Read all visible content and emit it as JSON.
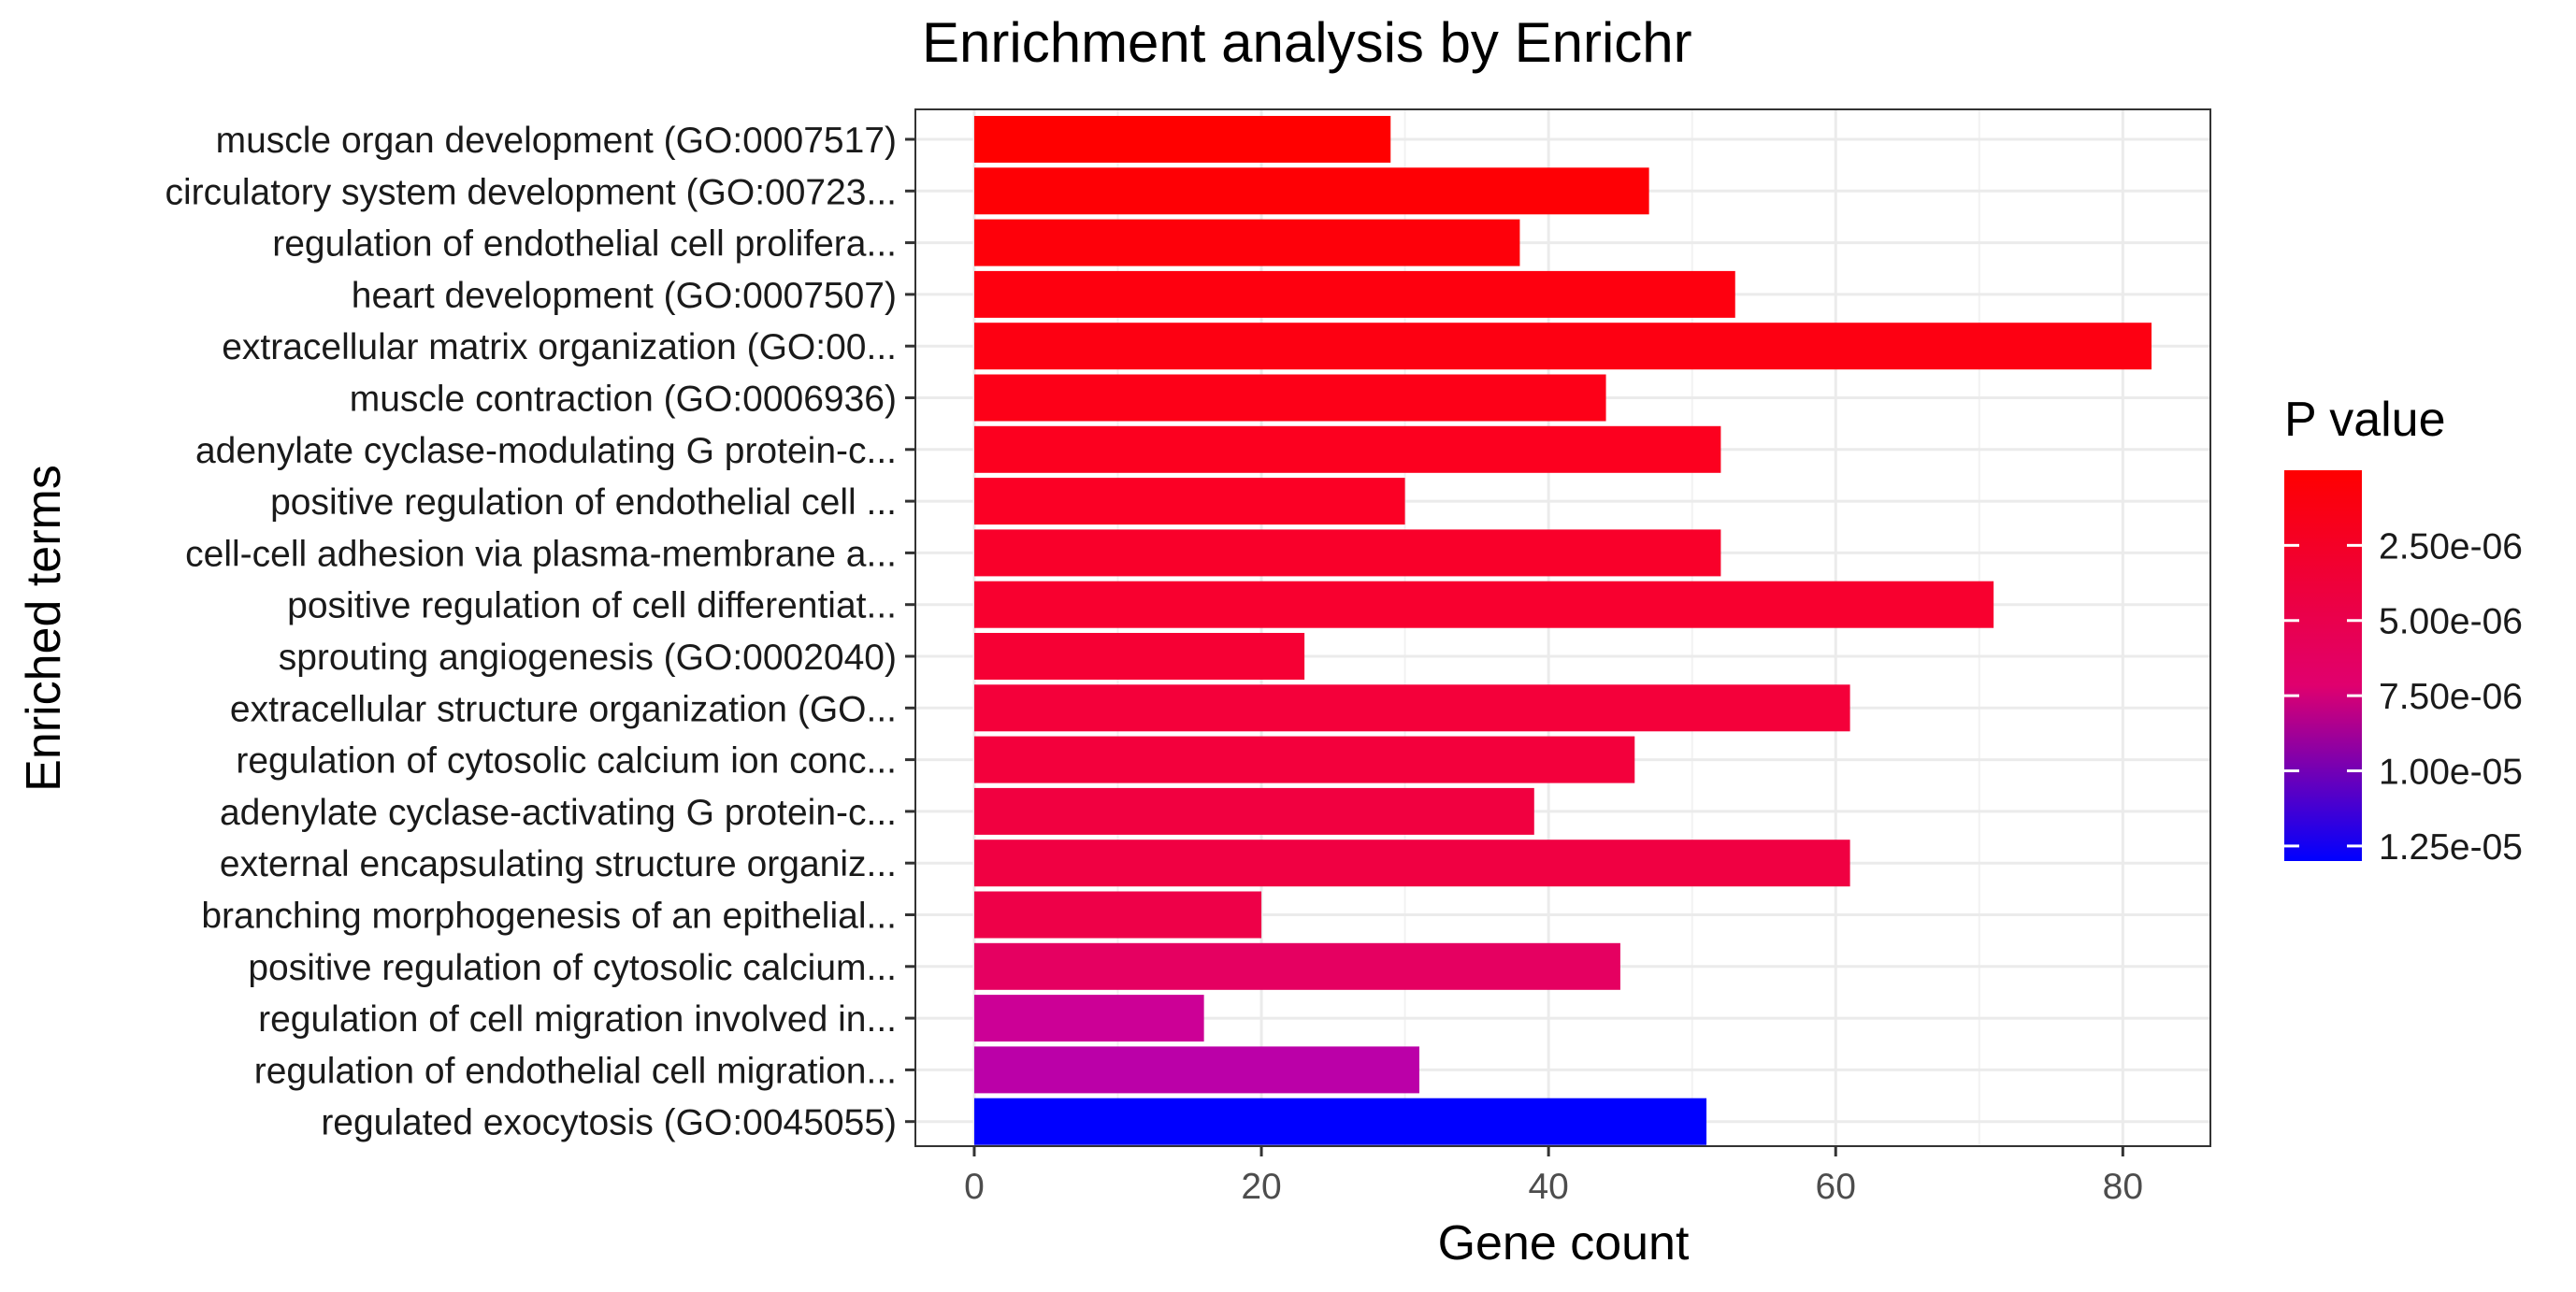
{
  "chart_data": {
    "type": "bar",
    "orientation": "horizontal",
    "title": "Enrichment analysis by Enrichr",
    "xlabel": "Gene count",
    "ylabel": "Enriched terms",
    "xlim": [
      -4.1,
      86.1
    ],
    "x_ticks": [
      0,
      20,
      40,
      60,
      80
    ],
    "grid": true,
    "legend_position": "right",
    "categories": [
      "muscle organ development (GO:0007517)",
      "circulatory system development (GO:00723...",
      "regulation of endothelial cell prolifera...",
      "heart development (GO:0007507)",
      "extracellular matrix organization (GO:00...",
      "muscle contraction (GO:0006936)",
      "adenylate cyclase-modulating G protein-c...",
      "positive regulation of endothelial cell ...",
      "cell-cell adhesion via plasma-membrane a...",
      "positive regulation of cell differentiat...",
      "sprouting angiogenesis (GO:0002040)",
      "extracellular structure organization (GO...",
      "regulation of cytosolic calcium ion conc...",
      "adenylate cyclase-activating G protein-c...",
      "external encapsulating structure organiz...",
      "branching morphogenesis of an epithelial...",
      "positive regulation of cytosolic calcium...",
      "regulation of cell migration involved in...",
      "regulation of endothelial cell migration...",
      "regulated exocytosis (GO:0045055)"
    ],
    "series": [
      {
        "values": [
          29,
          47,
          38,
          53,
          82,
          44,
          52,
          30,
          52,
          71,
          23,
          61,
          46,
          39,
          61,
          20,
          45,
          16,
          31,
          51
        ],
        "p_values": [
          1e-09,
          5e-08,
          1e-07,
          2e-07,
          3e-07,
          5e-07,
          7e-07,
          9e-07,
          1e-06,
          1.2e-06,
          1.5e-06,
          1.8e-06,
          2e-06,
          2.2e-06,
          2.3e-06,
          2.6e-06,
          3.6e-06,
          6e-06,
          6.8e-06,
          1.3e-05
        ],
        "colors": [
          "#ff0000",
          "#fe0005",
          "#fe000a",
          "#fe000f",
          "#fd0012",
          "#fd0018",
          "#fc001f",
          "#fb0025",
          "#f9002a",
          "#f8002f",
          "#f60034",
          "#f4003a",
          "#f3003c",
          "#f10040",
          "#f00042",
          "#ee0048",
          "#e50061",
          "#cc0096",
          "#bb00a8",
          "#0000ff"
        ]
      }
    ],
    "legend": {
      "title": "P value",
      "type": "colorbar",
      "labels": [
        "2.50e-06",
        "5.00e-06",
        "7.50e-06",
        "1.00e-05",
        "1.25e-05"
      ],
      "tick_values": [
        2.5e-06,
        5e-06,
        7.5e-06,
        1e-05,
        1.25e-05
      ],
      "range": [
        1e-09,
        1.3e-05
      ],
      "low_color": "#ff0000",
      "high_color": "#0000ff"
    }
  }
}
